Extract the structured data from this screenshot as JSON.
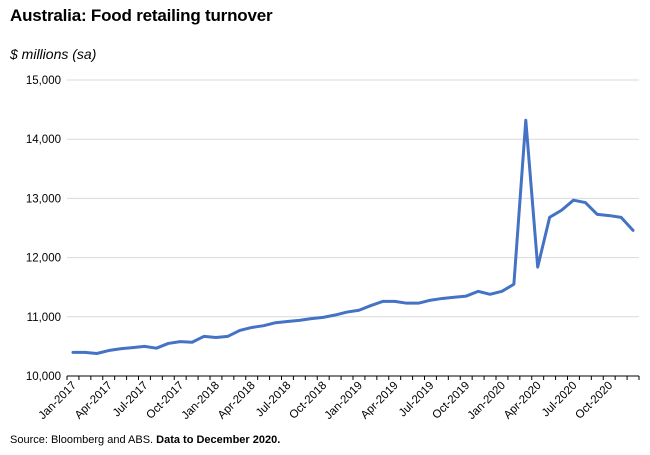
{
  "header": {
    "title": "Australia: Food retailing turnover",
    "unit_label": "$ millions (sa)"
  },
  "footer": {
    "source": "Source: Bloomberg and ABS.",
    "note": "Data to December 2020."
  },
  "colors": {
    "series": "#4472c4",
    "grid": "#d9d9d9",
    "axis": "#000000"
  },
  "chart_data": {
    "type": "line",
    "title": "Australia: Food retailing turnover",
    "ylabel": "$ millions (sa)",
    "xlabel": "",
    "ylim": [
      10000,
      15000
    ],
    "y_ticks": [
      10000,
      11000,
      12000,
      13000,
      14000,
      15000
    ],
    "y_tick_labels": [
      "10,000",
      "11,000",
      "12,000",
      "13,000",
      "14,000",
      "15,000"
    ],
    "x_tick_labels": [
      "Jan-2017",
      "Apr-2017",
      "Jul-2017",
      "Oct-2017",
      "Jan-2018",
      "Apr-2018",
      "Jul-2018",
      "Oct-2018",
      "Jan-2019",
      "Apr-2019",
      "Jul-2019",
      "Oct-2019",
      "Jan-2020",
      "Apr-2020",
      "Jul-2020",
      "Oct-2020"
    ],
    "grid": "horizontal",
    "legend": "none",
    "x": [
      "Jan-2017",
      "Feb-2017",
      "Mar-2017",
      "Apr-2017",
      "May-2017",
      "Jun-2017",
      "Jul-2017",
      "Aug-2017",
      "Sep-2017",
      "Oct-2017",
      "Nov-2017",
      "Dec-2017",
      "Jan-2018",
      "Feb-2018",
      "Mar-2018",
      "Apr-2018",
      "May-2018",
      "Jun-2018",
      "Jul-2018",
      "Aug-2018",
      "Sep-2018",
      "Oct-2018",
      "Nov-2018",
      "Dec-2018",
      "Jan-2019",
      "Feb-2019",
      "Mar-2019",
      "Apr-2019",
      "May-2019",
      "Jun-2019",
      "Jul-2019",
      "Aug-2019",
      "Sep-2019",
      "Oct-2019",
      "Nov-2019",
      "Dec-2019",
      "Jan-2020",
      "Feb-2020",
      "Mar-2020",
      "Apr-2020",
      "May-2020",
      "Jun-2020",
      "Jul-2020",
      "Aug-2020",
      "Sep-2020",
      "Oct-2020",
      "Nov-2020",
      "Dec-2020"
    ],
    "series": [
      {
        "values": [
          10400,
          10400,
          10380,
          10430,
          10460,
          10480,
          10500,
          10470,
          10550,
          10580,
          10570,
          10670,
          10650,
          10670,
          10770,
          10820,
          10850,
          10900,
          10920,
          10940,
          10970,
          10990,
          11030,
          11080,
          11110,
          11190,
          11260,
          11260,
          11230,
          11230,
          11280,
          11310,
          11330,
          11350,
          11430,
          11380,
          11430,
          11550,
          14320,
          11840,
          12680,
          12800,
          12970,
          12930,
          12730,
          12710,
          12680,
          12460
        ]
      }
    ]
  }
}
